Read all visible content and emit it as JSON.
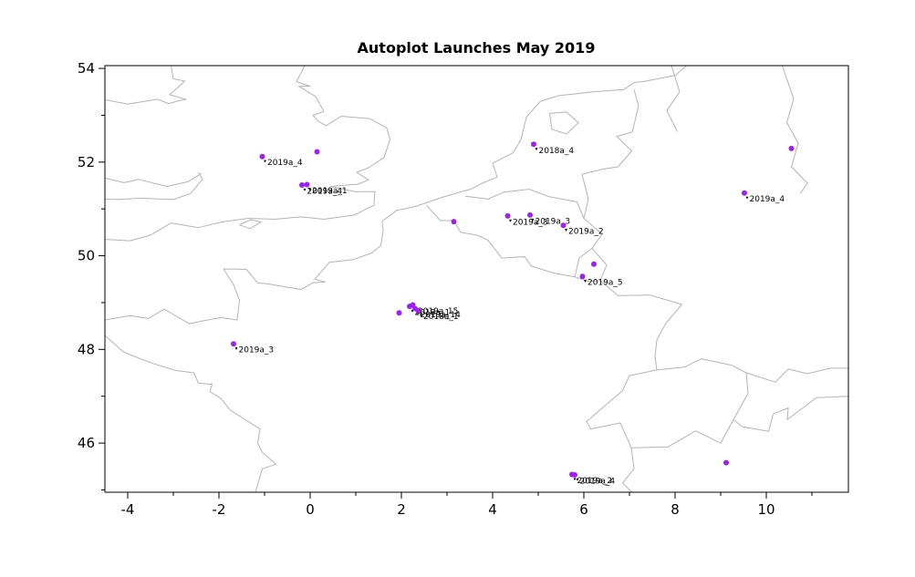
{
  "title": "Autoplot Launches May 2019",
  "chart_data": {
    "type": "scatter",
    "title": "Autoplot Launches May 2019",
    "xlabel": "",
    "ylabel": "",
    "xlim": [
      -4.5,
      11.8
    ],
    "ylim": [
      44.95,
      54.06
    ],
    "x_ticks": [
      -4,
      -2,
      0,
      2,
      4,
      6,
      8,
      10
    ],
    "y_ticks": [
      46,
      48,
      50,
      52,
      54
    ],
    "grid": false,
    "legend": "none",
    "point_color": "#A020F0",
    "map_line_color": "#B4B4B4",
    "axis_color": "#000000",
    "points": [
      {
        "lon": -1.05,
        "lat": 52.12,
        "label": "2019a_4"
      },
      {
        "lon": 0.15,
        "lat": 52.22,
        "label": ""
      },
      {
        "lon": -0.18,
        "lat": 51.51,
        "label": "2019a_4"
      },
      {
        "lon": -0.07,
        "lat": 51.52,
        "label": "2019a_1"
      },
      {
        "lon": -1.68,
        "lat": 48.12,
        "label": "2019a_3"
      },
      {
        "lon": 1.95,
        "lat": 48.78,
        "label": ""
      },
      {
        "lon": 2.18,
        "lat": 48.92,
        "label": "2019a_1"
      },
      {
        "lon": 2.25,
        "lat": 48.95,
        "label": "2019a_15"
      },
      {
        "lon": 2.3,
        "lat": 48.87,
        "label": "2019a_14"
      },
      {
        "lon": 2.37,
        "lat": 48.83,
        "label": "2018a_1"
      },
      {
        "lon": 3.15,
        "lat": 50.73,
        "label": ""
      },
      {
        "lon": 4.33,
        "lat": 50.85,
        "label": "2019a_3"
      },
      {
        "lon": 4.82,
        "lat": 50.87,
        "label": "2019a_3"
      },
      {
        "lon": 5.55,
        "lat": 50.65,
        "label": "2019a_2"
      },
      {
        "lon": 6.22,
        "lat": 49.82,
        "label": ""
      },
      {
        "lon": 5.97,
        "lat": 49.56,
        "label": "2019a_5"
      },
      {
        "lon": 4.9,
        "lat": 52.38,
        "label": "2018a_4"
      },
      {
        "lon": 9.52,
        "lat": 51.34,
        "label": "2019a_4"
      },
      {
        "lon": 10.55,
        "lat": 52.29,
        "label": ""
      },
      {
        "lon": 9.12,
        "lat": 45.58,
        "label": ""
      },
      {
        "lon": 5.74,
        "lat": 45.33,
        "label": "2019a_2"
      },
      {
        "lon": 5.8,
        "lat": 45.32,
        "label": "2019a_4"
      }
    ],
    "basemap": {
      "polylines": [
        [
          [
            -4.5,
            50.35
          ],
          [
            -3.95,
            50.32
          ],
          [
            -3.5,
            50.44
          ],
          [
            -3.05,
            50.7
          ],
          [
            -2.45,
            50.6
          ],
          [
            -1.95,
            50.72
          ],
          [
            -1.35,
            50.8
          ],
          [
            -0.78,
            50.78
          ],
          [
            -0.2,
            50.83
          ],
          [
            0.3,
            50.78
          ],
          [
            0.97,
            50.87
          ],
          [
            1.4,
            51.08
          ],
          [
            1.42,
            51.37
          ],
          [
            0.98,
            51.37
          ],
          [
            0.45,
            51.48
          ],
          [
            1.05,
            51.53
          ],
          [
            1.28,
            51.62
          ],
          [
            1.02,
            51.78
          ],
          [
            1.28,
            51.88
          ],
          [
            1.62,
            52.1
          ],
          [
            1.75,
            52.48
          ],
          [
            1.68,
            52.73
          ],
          [
            1.3,
            52.93
          ],
          [
            0.68,
            52.98
          ],
          [
            0.35,
            52.78
          ],
          [
            0.18,
            52.87
          ],
          [
            0.06,
            53.0
          ],
          [
            0.3,
            53.08
          ],
          [
            0.12,
            53.4
          ],
          [
            -0.25,
            53.62
          ],
          [
            0.0,
            53.62
          ],
          [
            -0.3,
            53.72
          ],
          [
            -0.12,
            54.06
          ]
        ],
        [
          [
            -1.55,
            50.66
          ],
          [
            -1.3,
            50.77
          ],
          [
            -1.08,
            50.72
          ],
          [
            -1.32,
            50.58
          ],
          [
            -1.55,
            50.66
          ]
        ],
        [
          [
            -4.5,
            53.33
          ],
          [
            -4.0,
            53.24
          ],
          [
            -3.35,
            53.34
          ],
          [
            -3.1,
            53.25
          ],
          [
            -2.92,
            53.3
          ],
          [
            -2.72,
            53.34
          ],
          [
            -3.08,
            53.44
          ],
          [
            -2.75,
            53.73
          ],
          [
            -3.0,
            53.78
          ],
          [
            -3.05,
            54.06
          ]
        ],
        [
          [
            -4.5,
            51.66
          ],
          [
            -4.08,
            51.56
          ],
          [
            -3.76,
            51.63
          ],
          [
            -3.14,
            51.48
          ],
          [
            -2.68,
            51.58
          ],
          [
            -2.38,
            51.76
          ]
        ],
        [
          [
            -4.5,
            51.21
          ],
          [
            -4.2,
            51.2
          ],
          [
            -3.72,
            51.23
          ],
          [
            -3.0,
            51.2
          ],
          [
            -2.62,
            51.33
          ],
          [
            -2.36,
            51.63
          ],
          [
            -2.45,
            51.78
          ]
        ],
        [
          [
            -4.5,
            48.63
          ],
          [
            -3.95,
            48.72
          ],
          [
            -3.55,
            48.66
          ],
          [
            -3.2,
            48.86
          ],
          [
            -2.65,
            48.55
          ],
          [
            -2.3,
            48.62
          ],
          [
            -1.95,
            48.68
          ],
          [
            -1.6,
            48.63
          ],
          [
            -1.55,
            49.05
          ],
          [
            -1.68,
            49.38
          ],
          [
            -1.9,
            49.72
          ],
          [
            -1.4,
            49.71
          ],
          [
            -1.15,
            49.42
          ],
          [
            -0.93,
            49.4
          ],
          [
            -0.2,
            49.28
          ],
          [
            0.05,
            49.42
          ],
          [
            0.33,
            49.44
          ],
          [
            0.1,
            49.5
          ],
          [
            0.42,
            49.86
          ],
          [
            0.95,
            49.92
          ],
          [
            1.35,
            50.06
          ],
          [
            1.55,
            50.22
          ],
          [
            1.6,
            50.53
          ],
          [
            1.58,
            50.74
          ],
          [
            1.9,
            50.97
          ],
          [
            2.3,
            51.05
          ],
          [
            2.9,
            51.25
          ],
          [
            3.35,
            51.38
          ],
          [
            3.52,
            51.42
          ],
          [
            3.8,
            51.56
          ],
          [
            4.1,
            51.68
          ],
          [
            4.0,
            51.98
          ],
          [
            4.45,
            52.2
          ],
          [
            4.62,
            52.48
          ],
          [
            4.74,
            52.96
          ],
          [
            5.05,
            53.3
          ],
          [
            5.45,
            53.42
          ],
          [
            6.2,
            53.5
          ],
          [
            6.88,
            53.55
          ],
          [
            7.1,
            53.7
          ],
          [
            7.3,
            53.72
          ],
          [
            8.0,
            53.85
          ],
          [
            8.25,
            54.06
          ]
        ],
        [
          [
            5.3,
            52.7
          ],
          [
            5.62,
            52.6
          ],
          [
            5.88,
            52.84
          ],
          [
            5.62,
            53.07
          ],
          [
            5.25,
            53.04
          ],
          [
            5.3,
            52.7
          ]
        ],
        [
          [
            -4.5,
            48.3
          ],
          [
            -4.1,
            47.95
          ],
          [
            -3.88,
            47.86
          ],
          [
            -3.45,
            47.7
          ],
          [
            -2.95,
            47.55
          ],
          [
            -2.55,
            47.5
          ],
          [
            -2.45,
            47.28
          ],
          [
            -2.15,
            47.25
          ],
          [
            -2.2,
            47.1
          ],
          [
            -1.95,
            46.95
          ],
          [
            -1.75,
            46.7
          ],
          [
            -1.1,
            46.3
          ],
          [
            -1.15,
            46.0
          ],
          [
            -1.05,
            45.8
          ],
          [
            -0.75,
            45.55
          ],
          [
            -1.05,
            45.45
          ],
          [
            -1.2,
            44.95
          ]
        ],
        [
          [
            2.55,
            51.08
          ],
          [
            2.85,
            50.75
          ],
          [
            3.15,
            50.75
          ],
          [
            3.3,
            50.5
          ],
          [
            3.66,
            50.44
          ],
          [
            3.9,
            50.33
          ],
          [
            4.2,
            49.95
          ],
          [
            4.7,
            49.98
          ],
          [
            4.85,
            49.78
          ],
          [
            5.3,
            49.64
          ],
          [
            5.8,
            49.55
          ],
          [
            6.1,
            49.45
          ],
          [
            6.36,
            49.47
          ],
          [
            6.75,
            49.15
          ],
          [
            7.45,
            49.16
          ],
          [
            8.15,
            48.96
          ],
          [
            7.8,
            48.56
          ],
          [
            7.6,
            48.2
          ],
          [
            7.56,
            47.85
          ],
          [
            7.6,
            47.56
          ]
        ],
        [
          [
            3.4,
            51.27
          ],
          [
            3.9,
            51.21
          ],
          [
            4.25,
            51.36
          ],
          [
            4.8,
            51.42
          ],
          [
            5.24,
            51.26
          ],
          [
            5.85,
            51.15
          ],
          [
            6.0,
            50.8
          ]
        ],
        [
          [
            6.0,
            50.8
          ],
          [
            6.1,
            51.2
          ],
          [
            5.96,
            51.74
          ],
          [
            6.42,
            51.85
          ],
          [
            6.75,
            51.9
          ],
          [
            7.05,
            52.24
          ],
          [
            6.72,
            52.55
          ],
          [
            7.06,
            52.64
          ],
          [
            7.2,
            53.2
          ],
          [
            7.1,
            53.55
          ]
        ],
        [
          [
            6.0,
            50.8
          ],
          [
            6.4,
            50.46
          ],
          [
            6.18,
            50.16
          ],
          [
            6.5,
            49.8
          ],
          [
            6.36,
            49.47
          ]
        ],
        [
          [
            5.8,
            49.55
          ],
          [
            5.9,
            49.95
          ],
          [
            6.18,
            50.16
          ]
        ],
        [
          [
            7.6,
            47.56
          ],
          [
            8.2,
            47.62
          ],
          [
            8.58,
            47.8
          ],
          [
            9.25,
            47.66
          ],
          [
            9.56,
            47.5
          ],
          [
            9.6,
            47.06
          ],
          [
            9.28,
            46.5
          ],
          [
            9.0,
            46.0
          ],
          [
            8.45,
            46.26
          ],
          [
            7.85,
            45.92
          ],
          [
            7.04,
            45.9
          ],
          [
            6.8,
            46.43
          ],
          [
            6.15,
            46.3
          ],
          [
            6.06,
            46.46
          ],
          [
            6.85,
            47.12
          ],
          [
            7.0,
            47.44
          ],
          [
            7.6,
            47.56
          ]
        ],
        [
          [
            7.04,
            45.9
          ],
          [
            7.1,
            45.45
          ],
          [
            6.85,
            45.15
          ],
          [
            7.05,
            44.95
          ]
        ],
        [
          [
            9.56,
            47.5
          ],
          [
            10.2,
            47.3
          ],
          [
            10.48,
            47.58
          ],
          [
            10.9,
            47.48
          ],
          [
            11.4,
            47.6
          ],
          [
            11.8,
            47.6
          ]
        ],
        [
          [
            9.28,
            46.5
          ],
          [
            9.47,
            46.35
          ],
          [
            10.05,
            46.25
          ],
          [
            10.15,
            46.62
          ],
          [
            10.48,
            46.75
          ],
          [
            10.46,
            46.5
          ],
          [
            11.1,
            46.97
          ],
          [
            11.8,
            47.0
          ]
        ],
        [
          [
            10.35,
            54.06
          ],
          [
            10.6,
            53.35
          ],
          [
            10.45,
            52.85
          ],
          [
            10.7,
            52.4
          ],
          [
            10.55,
            51.9
          ],
          [
            10.9,
            51.55
          ],
          [
            10.75,
            51.33
          ]
        ],
        [
          [
            7.92,
            54.06
          ],
          [
            8.1,
            53.5
          ],
          [
            7.82,
            53.1
          ],
          [
            8.05,
            52.65
          ]
        ]
      ]
    }
  }
}
